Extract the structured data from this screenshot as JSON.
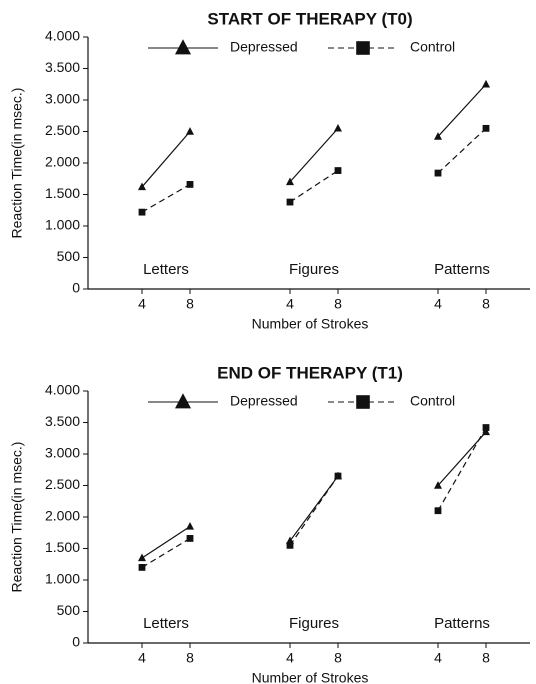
{
  "chart_data": [
    {
      "type": "line",
      "title": "START OF THERAPY (T0)",
      "xlabel": "Number of Strokes",
      "ylabel": "Reaction Time(in msec.)",
      "categories": [
        "4",
        "8",
        "4",
        "8",
        "4",
        "8"
      ],
      "groups": [
        "Letters",
        "Figures",
        "Patterns"
      ],
      "series": [
        {
          "name": "Depressed",
          "color": "#111111",
          "marker": "triangle",
          "dash": false,
          "values": [
            1620,
            2500,
            1700,
            2550,
            2420,
            3250
          ]
        },
        {
          "name": "Control",
          "color": "#111111",
          "marker": "square",
          "dash": true,
          "values": [
            1220,
            1660,
            1380,
            1880,
            1840,
            2550
          ]
        }
      ],
      "ylim": [
        0,
        4000
      ],
      "yticks": [
        0,
        500,
        {
          "value": 1000,
          "label": "1.000"
        },
        {
          "value": 1500,
          "label": "1.500"
        },
        {
          "value": 2000,
          "label": "2.000"
        },
        {
          "value": 2500,
          "label": "2.500"
        },
        {
          "value": 3000,
          "label": "3.000"
        },
        {
          "value": 3500,
          "label": "3.500"
        },
        {
          "value": 4000,
          "label": "4.000"
        }
      ]
    },
    {
      "type": "line",
      "title": "END OF THERAPY (T1)",
      "xlabel": "Number of Strokes",
      "ylabel": "Reaction Time(in msec.)",
      "categories": [
        "4",
        "8",
        "4",
        "8",
        "4",
        "8"
      ],
      "groups": [
        "Letters",
        "Figures",
        "Patterns"
      ],
      "series": [
        {
          "name": "Depressed",
          "color": "#111111",
          "marker": "triangle",
          "dash": false,
          "values": [
            1350,
            1850,
            1620,
            2650,
            2500,
            3350
          ]
        },
        {
          "name": "Control",
          "color": "#111111",
          "marker": "square",
          "dash": true,
          "values": [
            1200,
            1660,
            1550,
            2650,
            2100,
            3420
          ]
        }
      ],
      "ylim": [
        0,
        4000
      ],
      "yticks": [
        0,
        500,
        {
          "value": 1000,
          "label": "1.000"
        },
        {
          "value": 1500,
          "label": "1.500"
        },
        {
          "value": 2000,
          "label": "2.000"
        },
        {
          "value": 2500,
          "label": "2.500"
        },
        {
          "value": 3000,
          "label": "3.000"
        },
        {
          "value": 3500,
          "label": "3.500"
        },
        {
          "value": 4000,
          "label": "4.000"
        }
      ]
    }
  ]
}
